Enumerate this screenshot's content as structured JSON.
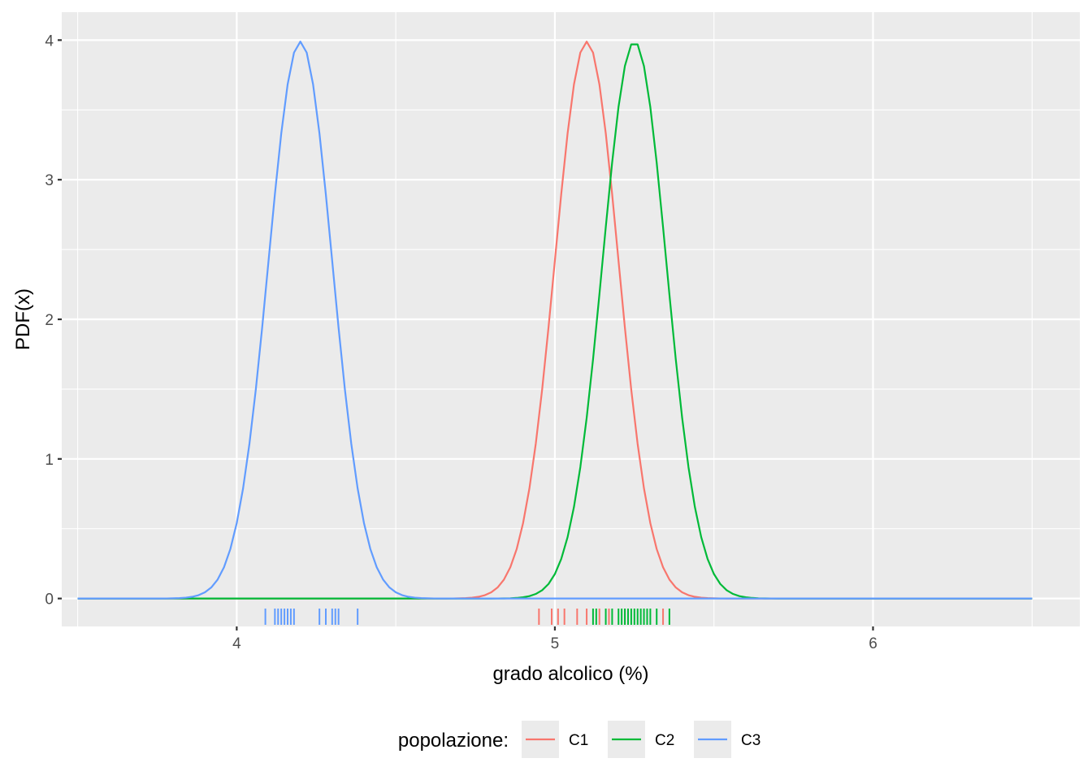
{
  "chart_data": {
    "type": "line",
    "xlabel": "grado alcolico (%)",
    "ylabel": "PDF(x)",
    "xlim": [
      3.45,
      6.65
    ],
    "ylim": [
      -0.2,
      4.2
    ],
    "xticks": [
      {
        "value": 4,
        "label": "4"
      },
      {
        "value": 5,
        "label": "5"
      },
      {
        "value": 6,
        "label": "6"
      }
    ],
    "yticks": [
      {
        "value": 0,
        "label": "0"
      },
      {
        "value": 1,
        "label": "1"
      },
      {
        "value": 2,
        "label": "2"
      },
      {
        "value": 3,
        "label": "3"
      },
      {
        "value": 4,
        "label": "4"
      }
    ],
    "x_minor_breaks": [
      3.5,
      4.5,
      5.5,
      6.5
    ],
    "y_minor_breaks": [
      0.5,
      1.5,
      2.5,
      3.5
    ],
    "grid": true,
    "legend": {
      "title": "popolazione:",
      "position": "bottom"
    },
    "curve_range": [
      3.5,
      6.5
    ],
    "curve_samples": 150,
    "series": [
      {
        "name": "C1",
        "color": "#F8766D",
        "mean": 5.1,
        "sd": 0.1,
        "rug": [
          4.95,
          4.99,
          5.01,
          5.03,
          5.07,
          5.1,
          5.14,
          5.17,
          5.22,
          5.23,
          5.34
        ]
      },
      {
        "name": "C2",
        "color": "#00BA38",
        "mean": 5.25,
        "sd": 0.1,
        "rug": [
          5.12,
          5.13,
          5.16,
          5.18,
          5.2,
          5.21,
          5.22,
          5.23,
          5.24,
          5.25,
          5.26,
          5.27,
          5.28,
          5.29,
          5.3,
          5.32,
          5.36
        ]
      },
      {
        "name": "C3",
        "color": "#619CFF",
        "mean": 4.2,
        "sd": 0.1,
        "rug": [
          4.09,
          4.12,
          4.13,
          4.14,
          4.15,
          4.16,
          4.17,
          4.18,
          4.26,
          4.28,
          4.3,
          4.31,
          4.32,
          4.38
        ]
      }
    ]
  }
}
